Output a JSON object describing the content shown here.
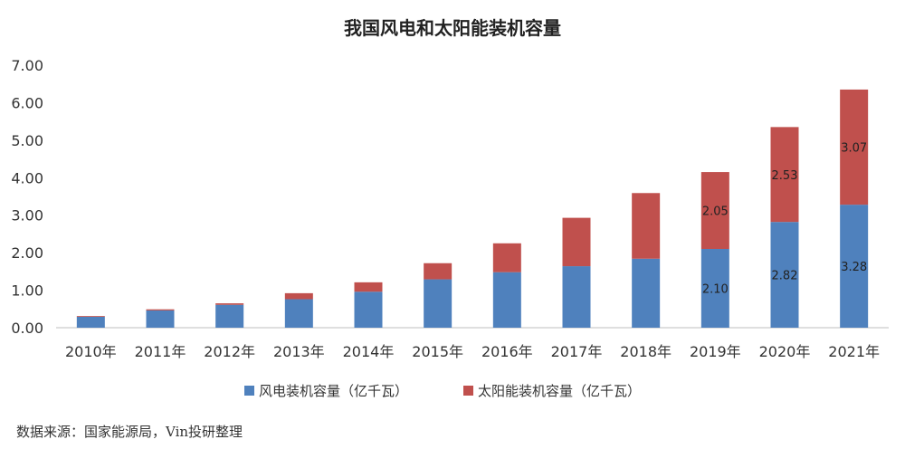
{
  "chart_data": {
    "type": "bar",
    "stacked": true,
    "title": "我国风电和太阳能装机容量",
    "categories": [
      "2010年",
      "2011年",
      "2012年",
      "2013年",
      "2014年",
      "2015年",
      "2016年",
      "2017年",
      "2018年",
      "2019年",
      "2020年",
      "2021年"
    ],
    "series": [
      {
        "name": "风电装机容量（亿千瓦）",
        "color": "#4f81bd",
        "values": [
          0.29,
          0.46,
          0.61,
          0.76,
          0.96,
          1.29,
          1.48,
          1.64,
          1.84,
          2.1,
          2.82,
          3.28
        ],
        "labels": [
          "",
          "",
          "",
          "",
          "",
          "",
          "",
          "",
          "",
          "2.10",
          "2.82",
          "3.28"
        ]
      },
      {
        "name": "太阳能装机容量（亿千瓦）",
        "color": "#c0504d",
        "values": [
          0.02,
          0.03,
          0.04,
          0.16,
          0.25,
          0.43,
          0.77,
          1.29,
          1.75,
          2.05,
          2.53,
          3.07
        ],
        "labels": [
          "",
          "",
          "",
          "",
          "",
          "",
          "",
          "",
          "",
          "2.05",
          "2.53",
          "3.07"
        ]
      }
    ],
    "yticks": [
      "0.00",
      "1.00",
      "2.00",
      "3.00",
      "4.00",
      "5.00",
      "6.00",
      "7.00"
    ],
    "ylim": [
      0,
      7
    ],
    "grid": false,
    "legend": "bottom"
  },
  "source_text": "数据来源：国家能源局，Vin投研整理"
}
